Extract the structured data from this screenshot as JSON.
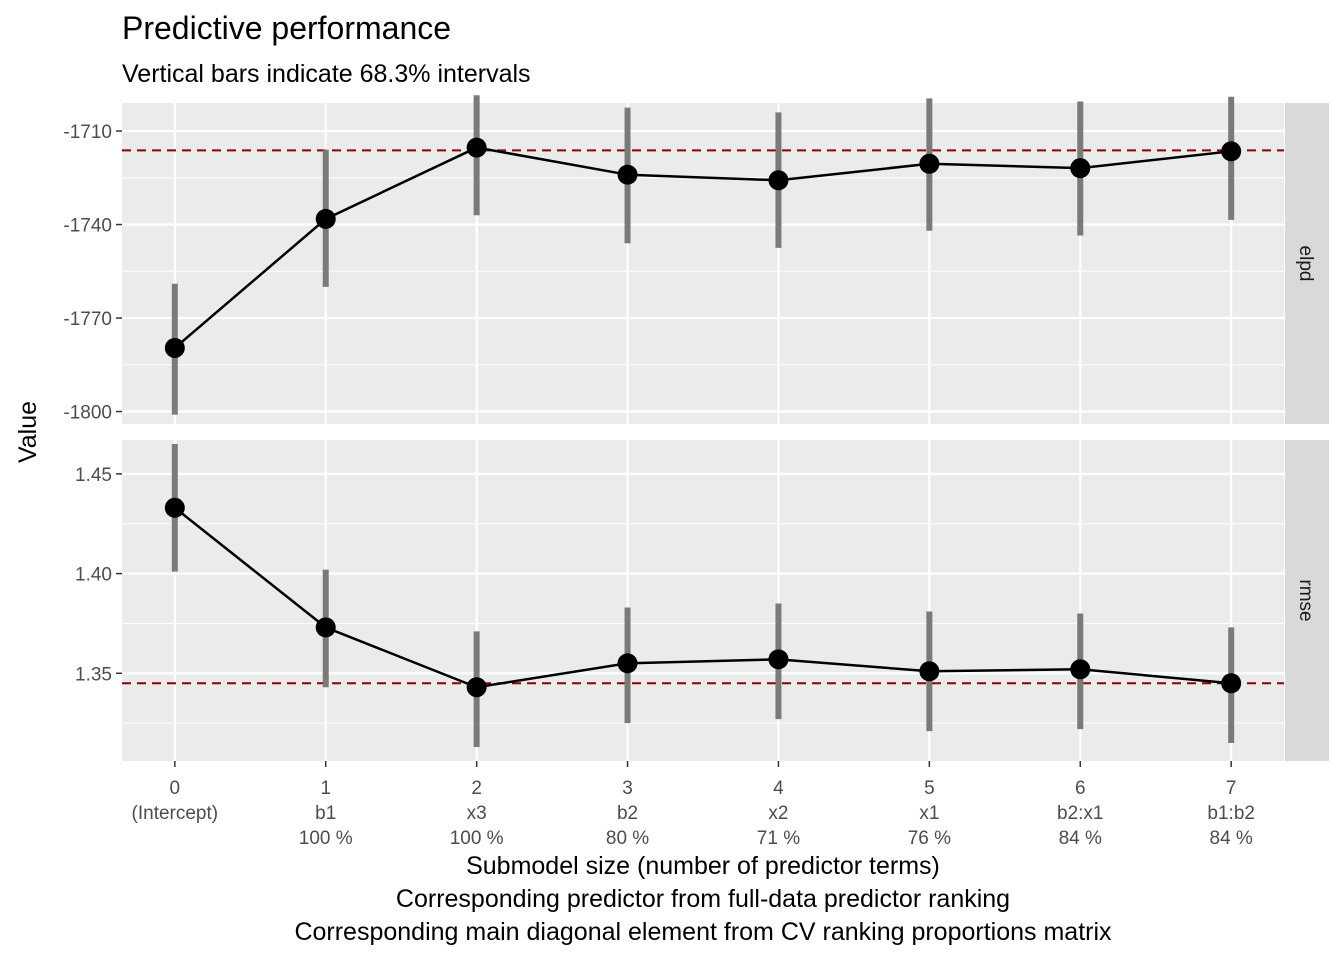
{
  "chart_data": {
    "type": "line",
    "title": "Predictive performance",
    "subtitle": "Vertical bars indicate 68.3% intervals",
    "ylabel": "Value",
    "xlabel_lines": [
      "Submodel size (number of predictor terms)",
      "Corresponding predictor from full-data predictor ranking",
      "Corresponding main diagonal element from CV ranking proportions matrix"
    ],
    "x": [
      0,
      1,
      2,
      3,
      4,
      5,
      6,
      7
    ],
    "x_tick_labels": [
      [
        "0",
        "(Intercept)",
        ""
      ],
      [
        "1",
        "b1",
        "100 %"
      ],
      [
        "2",
        "x3",
        "100 %"
      ],
      [
        "3",
        "b2",
        "80 %"
      ],
      [
        "4",
        "x2",
        "71 %"
      ],
      [
        "5",
        "x1",
        "76 %"
      ],
      [
        "6",
        "b2:x1",
        "84 %"
      ],
      [
        "7",
        "b1:b2",
        "84 %"
      ]
    ],
    "xlim": [
      -0.35,
      7.35
    ],
    "colors": {
      "panel_bg": "#ebebeb",
      "grid": "#ffffff",
      "strip_bg": "#d9d9d9",
      "line": "#000000",
      "interval": "#7a7a7a",
      "reference": "#8b0000"
    },
    "panels": [
      {
        "strip": "elpd",
        "ylim": [
          -1804,
          -1701
        ],
        "y_ticks": [
          -1710,
          -1740,
          -1770,
          -1800
        ],
        "y_tick_labels": [
          "-1710",
          "-1740",
          "-1770",
          "-1800"
        ],
        "reference": -1716.2,
        "values": [
          -1779.6,
          -1738.2,
          -1715.3,
          -1724.0,
          -1725.8,
          -1720.5,
          -1721.9,
          -1716.5
        ],
        "lower": [
          -1801.0,
          -1760.0,
          -1737.0,
          -1746.0,
          -1747.5,
          -1742.0,
          -1743.5,
          -1738.5
        ],
        "upper": [
          -1759.0,
          -1716.0,
          -1698.5,
          -1702.5,
          -1704.0,
          -1699.5,
          -1700.5,
          -1699.0
        ]
      },
      {
        "strip": "rmse",
        "ylim": [
          1.306,
          1.467
        ],
        "y_ticks": [
          1.45,
          1.4,
          1.35
        ],
        "y_tick_labels": [
          "1.45",
          "1.40",
          "1.35"
        ],
        "reference": 1.345,
        "values": [
          1.433,
          1.373,
          1.343,
          1.355,
          1.357,
          1.351,
          1.352,
          1.345
        ],
        "lower": [
          1.401,
          1.343,
          1.313,
          1.325,
          1.327,
          1.321,
          1.322,
          1.315
        ],
        "upper": [
          1.465,
          1.402,
          1.371,
          1.383,
          1.385,
          1.381,
          1.38,
          1.373
        ]
      }
    ]
  }
}
